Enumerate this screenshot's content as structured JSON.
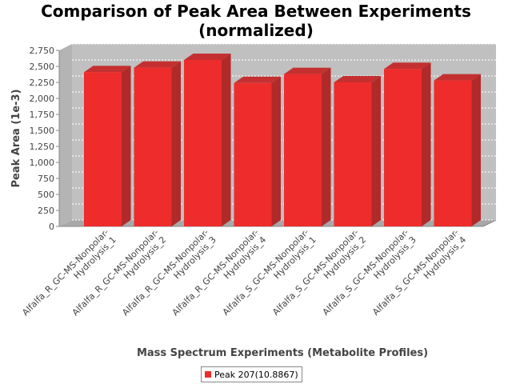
{
  "chart_data": {
    "type": "bar",
    "title_line1": "Comparison of Peak Area Between Experiments",
    "title_line2": "(normalized)",
    "xlabel": "Mass Spectrum Experiments (Metabolite Profiles)",
    "ylabel": "Peak Area (1e-3)",
    "ylim": [
      0,
      2750
    ],
    "yticks": [
      0,
      250,
      500,
      750,
      1000,
      1250,
      1500,
      1750,
      2000,
      2250,
      2500,
      2750
    ],
    "ytick_labels": [
      "0",
      "250",
      "500",
      "750",
      "1,000",
      "1,250",
      "1,500",
      "1,750",
      "2,000",
      "2,250",
      "2,500",
      "2,750"
    ],
    "categories": [
      {
        "line1": "Alfalfa_R_GC-MS-Nonpolar-",
        "line2": "Hydrolysis_1"
      },
      {
        "line1": "Alfalfa_R_GC-MS-Nonpolar-",
        "line2": "Hydrolysis_2"
      },
      {
        "line1": "Alfalfa_R_GC-MS-Nonpolar-",
        "line2": "Hydrolysis_3"
      },
      {
        "line1": "Alfalfa_R_GC-MS-Nonpolar-",
        "line2": "Hydrolysis_4"
      },
      {
        "line1": "Alfalfa_S_GC-MS-Nonpolar-",
        "line2": "Hydrolysis_1"
      },
      {
        "line1": "Alfalfa_S_GC-MS-Nonpolar-",
        "line2": "Hydrolysis_2"
      },
      {
        "line1": "Alfalfa_S_GC-MS-Nonpolar-",
        "line2": "Hydrolysis_3"
      },
      {
        "line1": "Alfalfa_S_GC-MS-Nonpolar-",
        "line2": "Hydrolysis_4"
      }
    ],
    "series": [
      {
        "name": "Peak 207(10.8867)",
        "values": [
          2410,
          2480,
          2600,
          2240,
          2380,
          2250,
          2460,
          2280
        ],
        "color": "#ee2c2c"
      }
    ],
    "grid": true,
    "legend_position": "bottom"
  }
}
